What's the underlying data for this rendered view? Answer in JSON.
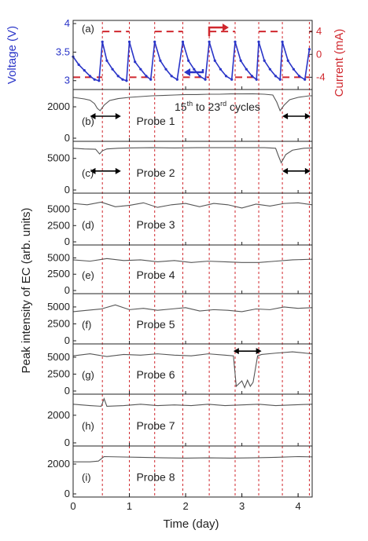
{
  "colors": {
    "voltage": "#2a35c8",
    "current": "#d0282e",
    "signal": "#555555",
    "axis": "#222222",
    "cycle_guides": "#d0282e"
  },
  "chart_data": {
    "type": "line",
    "shared_x": {
      "label": "Time (day)",
      "range": [
        0,
        4.25
      ],
      "ticks": [
        0,
        1,
        2,
        3,
        4
      ],
      "cycle_boundaries_days": [
        0.52,
        1.0,
        1.45,
        1.95,
        2.42,
        2.88,
        3.3,
        3.72,
        4.2
      ]
    },
    "shared_y_label": "Peak intensity of EC (arb. units)",
    "annotation_main_prefix": "15",
    "annotation_sup1": "th",
    "annotation_mid": " to 23",
    "annotation_sup2": "rd",
    "annotation_suffix": " cycles",
    "panels": [
      {
        "id": "a",
        "label": "(a)",
        "series": [
          {
            "name": "Voltage",
            "axis_label": "Voltage (V)",
            "side": "left",
            "range": [
              2.9,
              4.0
            ],
            "ticks": [
              3,
              3.5,
              4
            ],
            "tick_labels": [
              "3",
              "3.5",
              "4"
            ],
            "x": [
              0.0,
              0.1,
              0.2,
              0.3,
              0.38,
              0.46,
              0.52,
              0.6,
              0.7,
              0.8,
              0.88,
              0.95,
              1.0,
              1.1,
              1.2,
              1.3,
              1.38,
              1.45,
              1.55,
              1.65,
              1.75,
              1.85,
              1.95,
              2.05,
              2.15,
              2.25,
              2.35,
              2.42,
              2.52,
              2.62,
              2.72,
              2.82,
              2.88,
              2.98,
              3.08,
              3.18,
              3.26,
              3.3,
              3.4,
              3.5,
              3.6,
              3.68,
              3.72,
              3.82,
              3.92,
              4.02,
              4.12,
              4.2
            ],
            "values": [
              3.42,
              3.28,
              3.18,
              3.08,
              3.02,
              3.0,
              3.68,
              3.35,
              3.2,
              3.08,
              3.02,
              3.0,
              3.68,
              3.33,
              3.2,
              3.08,
              3.02,
              3.68,
              3.35,
              3.2,
              3.08,
              3.02,
              3.68,
              3.35,
              3.2,
              3.08,
              3.02,
              3.68,
              3.35,
              3.2,
              3.08,
              3.02,
              3.68,
              3.35,
              3.2,
              3.08,
              3.02,
              3.68,
              3.35,
              3.2,
              3.08,
              3.02,
              3.68,
              3.35,
              3.2,
              3.08,
              3.02,
              3.55
            ]
          },
          {
            "name": "Current",
            "axis_label": "Current (mA)",
            "side": "right",
            "range": [
              -5.6,
              5.4
            ],
            "ticks": [
              -4,
              0,
              4
            ],
            "tick_labels": [
              "-4",
              "0",
              "4"
            ],
            "levels": {
              "high": 4,
              "low": -4
            }
          }
        ]
      },
      {
        "id": "b",
        "label": "(b)",
        "probe": "Probe 1",
        "range": [
          0,
          2900
        ],
        "ticks": [
          0,
          2000
        ],
        "tick_labels": [
          "0",
          "2000"
        ],
        "x": [
          0.0,
          0.1,
          0.2,
          0.3,
          0.38,
          0.43,
          0.48,
          0.55,
          0.65,
          0.8,
          1.0,
          1.2,
          1.4,
          1.6,
          1.8,
          2.0,
          2.2,
          2.4,
          2.6,
          2.8,
          3.0,
          3.2,
          3.4,
          3.55,
          3.62,
          3.68,
          3.75,
          3.85,
          4.0,
          4.1,
          4.2,
          4.25
        ],
        "values": [
          2600,
          2550,
          2500,
          2420,
          2200,
          1900,
          1750,
          2100,
          2400,
          2520,
          2600,
          2650,
          2700,
          2720,
          2750,
          2780,
          2780,
          2800,
          2800,
          2820,
          2820,
          2830,
          2800,
          2750,
          2300,
          1750,
          2100,
          2450,
          2600,
          2650,
          2700,
          2700
        ],
        "arrows": [
          {
            "from": 0.3,
            "to": 0.85,
            "y": 1400
          },
          {
            "from": 3.72,
            "to": 4.22,
            "y": 1400
          }
        ]
      },
      {
        "id": "c",
        "label": "(c)",
        "probe": "Probe 2",
        "range": [
          0,
          7200
        ],
        "ticks": [
          0,
          5000
        ],
        "tick_labels": [
          "0",
          "5000"
        ],
        "x": [
          0.0,
          0.2,
          0.4,
          0.47,
          0.52,
          0.6,
          0.8,
          1.0,
          1.4,
          1.8,
          2.2,
          2.6,
          3.0,
          3.4,
          3.6,
          3.65,
          3.7,
          3.78,
          3.9,
          4.1,
          4.25
        ],
        "values": [
          6600,
          6500,
          6450,
          5700,
          6200,
          6500,
          6600,
          6650,
          6700,
          6650,
          6700,
          6700,
          6700,
          6700,
          6600,
          5400,
          4300,
          5600,
          6300,
          6600,
          6650
        ],
        "arrows": [
          {
            "from": 0.3,
            "to": 0.85,
            "y": 3000
          },
          {
            "from": 3.72,
            "to": 4.22,
            "y": 3000
          }
        ]
      },
      {
        "id": "d",
        "label": "(d)",
        "probe": "Probe 3",
        "range": [
          0,
          7000
        ],
        "ticks": [
          0,
          2500,
          5000
        ],
        "tick_labels": [
          "0",
          "2500",
          "5000"
        ],
        "x": [
          0.0,
          0.25,
          0.5,
          0.75,
          1.0,
          1.25,
          1.5,
          1.75,
          2.0,
          2.25,
          2.5,
          2.75,
          3.0,
          3.25,
          3.5,
          3.75,
          4.0,
          4.25
        ],
        "values": [
          5900,
          5700,
          6100,
          5400,
          5600,
          6000,
          5300,
          5700,
          5900,
          5400,
          5900,
          5700,
          5200,
          5800,
          5500,
          5900,
          6000,
          5700
        ]
      },
      {
        "id": "e",
        "label": "(e)",
        "probe": "Probe 4",
        "range": [
          0,
          6500
        ],
        "ticks": [
          0,
          2500,
          5000
        ],
        "tick_labels": [
          "0",
          "2500",
          "5000"
        ],
        "x": [
          0.0,
          0.3,
          0.6,
          0.9,
          1.2,
          1.5,
          1.8,
          2.1,
          2.4,
          2.7,
          3.0,
          3.3,
          3.6,
          3.9,
          4.25
        ],
        "values": [
          4700,
          4500,
          4900,
          4600,
          4700,
          4400,
          4600,
          4300,
          4500,
          4400,
          4300,
          4300,
          4500,
          4700,
          4800
        ]
      },
      {
        "id": "f",
        "label": "(f)",
        "probe": "Probe 5",
        "range": [
          0,
          6500
        ],
        "ticks": [
          0,
          2500,
          5000
        ],
        "tick_labels": [
          "0",
          "2500",
          "5000"
        ],
        "x": [
          0.0,
          0.25,
          0.5,
          0.75,
          1.0,
          1.25,
          1.5,
          1.75,
          2.0,
          2.25,
          2.5,
          2.75,
          3.0,
          3.25,
          3.5,
          3.75,
          4.0,
          4.25
        ],
        "values": [
          4300,
          4500,
          4700,
          5300,
          4600,
          4800,
          4500,
          4700,
          4900,
          4400,
          4600,
          4500,
          4300,
          4700,
          4600,
          5000,
          4800,
          4900
        ]
      },
      {
        "id": "g",
        "label": "(g)",
        "probe": "Probe 6",
        "range": [
          0,
          6500
        ],
        "ticks": [
          0,
          2500,
          5000
        ],
        "tick_labels": [
          "0",
          "2500",
          "5000"
        ],
        "x": [
          0.0,
          0.3,
          0.6,
          0.9,
          1.2,
          1.5,
          1.8,
          2.1,
          2.4,
          2.7,
          2.85,
          2.9,
          3.0,
          3.05,
          3.1,
          3.15,
          3.2,
          3.28,
          3.35,
          3.6,
          3.9,
          4.25
        ],
        "values": [
          5200,
          5500,
          5100,
          5400,
          5300,
          5500,
          5300,
          5200,
          5500,
          5300,
          5200,
          700,
          1500,
          500,
          1600,
          700,
          1300,
          5200,
          5400,
          5600,
          5800,
          5500
        ],
        "arrows": [
          {
            "from": 2.85,
            "to": 3.35,
            "y": 5900
          }
        ]
      },
      {
        "id": "h",
        "label": "(h)",
        "probe": "Probe 7",
        "range": [
          0,
          3300
        ],
        "ticks": [
          0,
          2000
        ],
        "tick_labels": [
          "0",
          "2000"
        ],
        "x": [
          0.0,
          0.3,
          0.5,
          0.55,
          0.6,
          0.9,
          1.2,
          1.5,
          1.8,
          2.1,
          2.4,
          2.7,
          3.0,
          3.3,
          3.6,
          3.9,
          4.25
        ],
        "values": [
          2800,
          2700,
          2650,
          3200,
          2650,
          2700,
          2800,
          2700,
          2750,
          2700,
          2800,
          2700,
          2750,
          2800,
          2700,
          2750,
          2800
        ]
      },
      {
        "id": "i",
        "label": "(i)",
        "probe": "Probe 8",
        "range": [
          0,
          3000
        ],
        "ticks": [
          0,
          2000
        ],
        "tick_labels": [
          "0",
          "2000"
        ],
        "x": [
          0.0,
          0.3,
          0.45,
          0.55,
          0.8,
          1.2,
          1.6,
          2.0,
          2.4,
          2.8,
          3.2,
          3.6,
          4.0,
          4.25
        ],
        "values": [
          2150,
          2150,
          2200,
          2500,
          2480,
          2450,
          2420,
          2400,
          2420,
          2400,
          2420,
          2450,
          2500,
          2480
        ]
      }
    ]
  }
}
